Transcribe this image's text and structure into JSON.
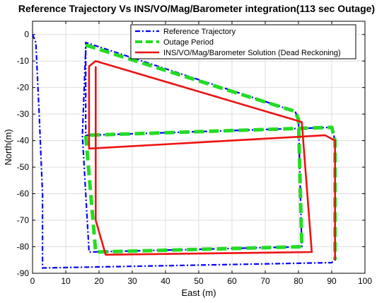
{
  "chart_data": {
    "type": "line",
    "title": "Reference Trajectory Vs INS/VO/Mag/Barometer integration(113 sec Outage)",
    "xlabel": "East (m)",
    "ylabel": "North(m)",
    "xlim": [
      0,
      100
    ],
    "ylim": [
      -90,
      5
    ],
    "xticks": [
      0,
      10,
      20,
      30,
      40,
      50,
      60,
      70,
      80,
      90,
      100
    ],
    "yticks": [
      0,
      -10,
      -20,
      -30,
      -40,
      -50,
      -60,
      -70,
      -80,
      -90
    ],
    "grid": true,
    "legend_position": "top-right",
    "series": [
      {
        "name": "Reference Trajectory",
        "color": "#0000ff",
        "style": "dash-dot",
        "points": [
          [
            0,
            0
          ],
          [
            1,
            -3
          ],
          [
            2,
            -30
          ],
          [
            3,
            -60
          ],
          [
            3,
            -88
          ],
          [
            90,
            -86
          ],
          [
            91,
            -85
          ],
          [
            91,
            -40
          ],
          [
            90,
            -35
          ],
          [
            16,
            -38
          ],
          [
            16,
            -3
          ],
          [
            79,
            -29
          ],
          [
            80,
            -32
          ],
          [
            81,
            -80
          ],
          [
            17,
            -82
          ],
          [
            15,
            -38
          ],
          [
            16,
            -5
          ]
        ]
      },
      {
        "name": "Outage Period",
        "color": "#22dd22",
        "style": "dashed",
        "points": [
          [
            16,
            -4
          ],
          [
            79,
            -29
          ],
          [
            80,
            -32
          ],
          [
            81,
            -80
          ],
          [
            19,
            -82
          ],
          [
            16,
            -38
          ],
          [
            90,
            -35
          ],
          [
            91,
            -40
          ],
          [
            91,
            -85
          ]
        ]
      },
      {
        "name": "INS/VO/Mag/Barometer Solution (Dead Reckoning)",
        "color": "#ee1111",
        "style": "solid",
        "points": [
          [
            19,
            -12
          ],
          [
            19,
            -70
          ],
          [
            22,
            -83
          ],
          [
            84,
            -82
          ],
          [
            81,
            -33
          ],
          [
            19,
            -10
          ],
          [
            17,
            -12
          ],
          [
            17,
            -43
          ],
          [
            88,
            -38
          ],
          [
            91,
            -40
          ],
          [
            91,
            -85
          ]
        ]
      }
    ]
  }
}
